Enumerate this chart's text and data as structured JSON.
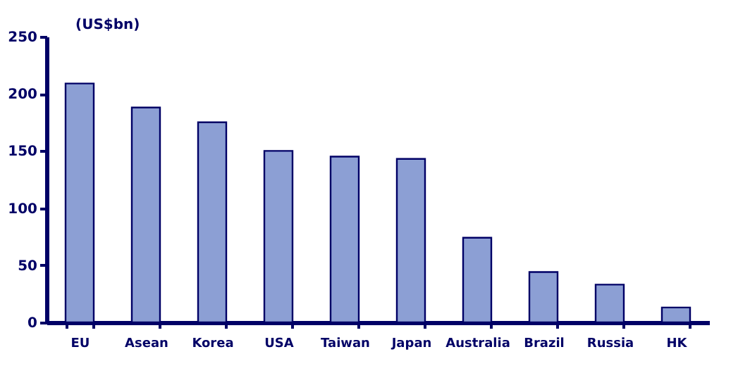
{
  "chart_data": {
    "type": "bar",
    "ylabel": "(US$bn)",
    "categories": [
      "EU",
      "Asean",
      "Korea",
      "USA",
      "Taiwan",
      "Japan",
      "Australia",
      "Brazil",
      "Russia",
      "HK"
    ],
    "values": [
      209,
      188,
      175,
      150,
      145,
      143,
      74,
      44,
      33,
      13
    ],
    "color": "#8c9fd4",
    "ylim": [
      0,
      250
    ],
    "yticks": [
      0,
      50,
      100,
      150,
      200,
      250
    ],
    "grid": false
  }
}
